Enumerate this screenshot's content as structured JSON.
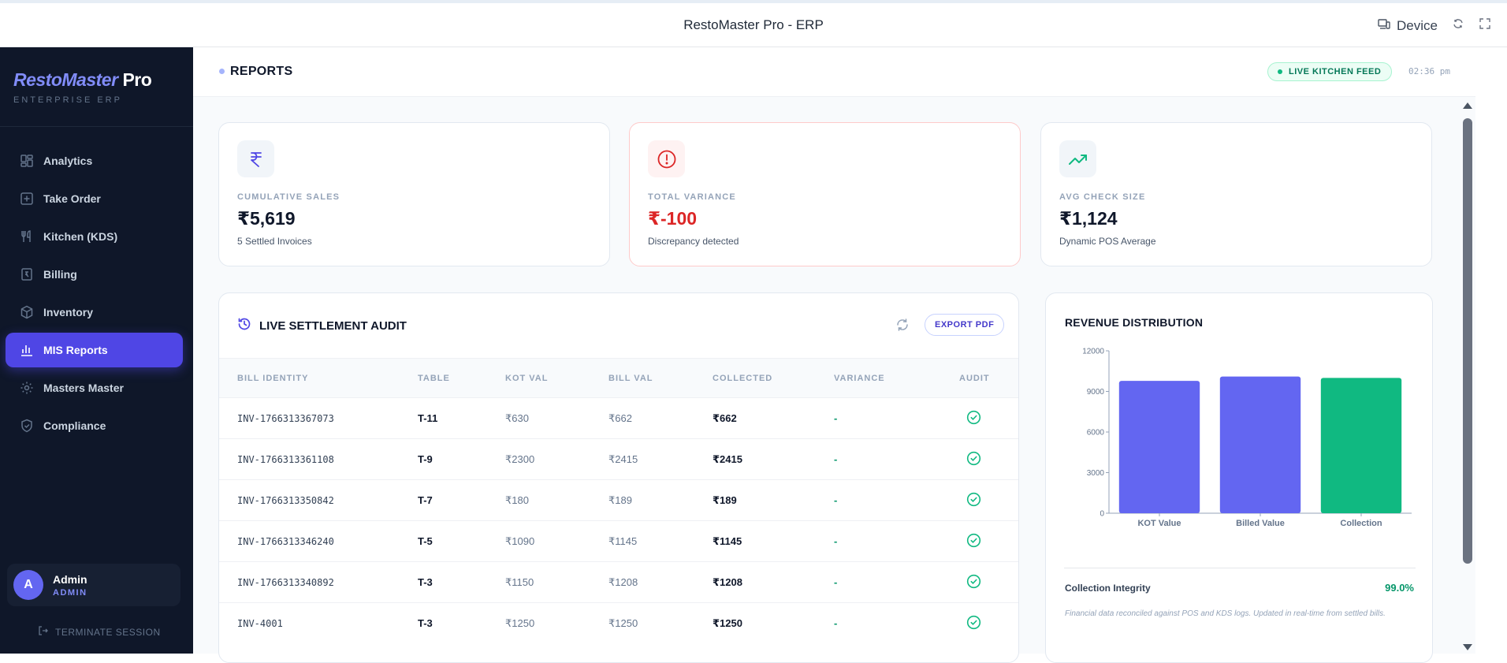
{
  "window": {
    "title": "RestoMaster Pro - ERP",
    "device_label": "Device"
  },
  "sidebar": {
    "brand_main": "RestoMaster",
    "brand_suffix": "Pro",
    "brand_sub": "ENTERPRISE ERP",
    "items": [
      {
        "label": "Analytics",
        "icon": "analytics-icon"
      },
      {
        "label": "Take Order",
        "icon": "plus-square-icon"
      },
      {
        "label": "Kitchen (KDS)",
        "icon": "utensils-icon"
      },
      {
        "label": "Billing",
        "icon": "receipt-icon"
      },
      {
        "label": "Inventory",
        "icon": "package-icon"
      },
      {
        "label": "MIS Reports",
        "icon": "bar-chart-icon",
        "active": true
      },
      {
        "label": "Masters Master",
        "icon": "gear-icon"
      },
      {
        "label": "Compliance",
        "icon": "shield-check-icon"
      }
    ],
    "user": {
      "initial": "A",
      "name": "Admin",
      "role": "ADMIN"
    },
    "terminate_label": "TERMINATE SESSION"
  },
  "header": {
    "title": "REPORTS",
    "live_feed_label": "LIVE KITCHEN FEED",
    "time": "02:36 pm"
  },
  "kpis": [
    {
      "label": "CUMULATIVE SALES",
      "value": "₹5,619",
      "sub": "5 Settled Invoices",
      "icon": "rupee-icon"
    },
    {
      "label": "TOTAL VARIANCE",
      "value": "₹-100",
      "sub": "Discrepancy detected",
      "icon": "alert-circle-icon"
    },
    {
      "label": "AVG CHECK SIZE",
      "value": "₹1,124",
      "sub": "Dynamic POS Average",
      "icon": "trending-up-icon"
    }
  ],
  "audit": {
    "title": "LIVE SETTLEMENT AUDIT",
    "export_label": "EXPORT PDF",
    "columns": [
      "BILL IDENTITY",
      "TABLE",
      "KOT VAL",
      "BILL VAL",
      "COLLECTED",
      "VARIANCE",
      "AUDIT"
    ],
    "rows": [
      {
        "bill": "INV-1766313367073",
        "table": "T-11",
        "kot": "₹630",
        "billval": "₹662",
        "collected": "₹662",
        "variance": "-"
      },
      {
        "bill": "INV-1766313361108",
        "table": "T-9",
        "kot": "₹2300",
        "billval": "₹2415",
        "collected": "₹2415",
        "variance": "-"
      },
      {
        "bill": "INV-1766313350842",
        "table": "T-7",
        "kot": "₹180",
        "billval": "₹189",
        "collected": "₹189",
        "variance": "-"
      },
      {
        "bill": "INV-1766313346240",
        "table": "T-5",
        "kot": "₹1090",
        "billval": "₹1145",
        "collected": "₹1145",
        "variance": "-"
      },
      {
        "bill": "INV-1766313340892",
        "table": "T-3",
        "kot": "₹1150",
        "billval": "₹1208",
        "collected": "₹1208",
        "variance": "-"
      },
      {
        "bill": "INV-4001",
        "table": "T-3",
        "kot": "₹1250",
        "billval": "₹1250",
        "collected": "₹1250",
        "variance": "-"
      }
    ]
  },
  "revenue": {
    "title": "REVENUE DISTRIBUTION",
    "integrity_label": "Collection Integrity",
    "integrity_value": "99.0%",
    "note": "Financial data reconciled against POS and KDS logs. Updated in real-time from settled bills."
  },
  "chart_data": {
    "type": "bar",
    "categories": [
      "KOT Value",
      "Billed Value",
      "Collection"
    ],
    "values": [
      9780,
      10100,
      10000
    ],
    "colors": [
      "#6366f1",
      "#6366f1",
      "#10b981"
    ],
    "ylim": [
      0,
      12000
    ],
    "yticks": [
      0,
      3000,
      6000,
      9000,
      12000
    ],
    "title": "",
    "xlabel": "",
    "ylabel": "",
    "grid": false
  }
}
